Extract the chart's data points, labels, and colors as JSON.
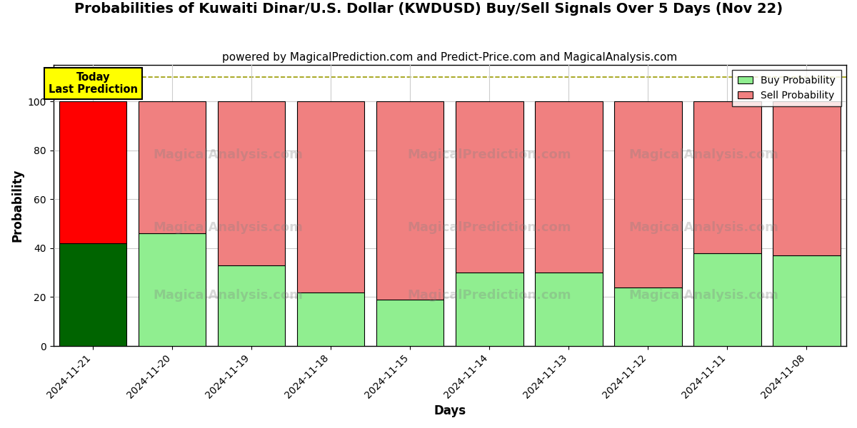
{
  "title": "Probabilities of Kuwaiti Dinar/U.S. Dollar (KWDUSD) Buy/Sell Signals Over 5 Days (Nov 22)",
  "subtitle": "powered by MagicalPrediction.com and Predict-Price.com and MagicalAnalysis.com",
  "xlabel": "Days",
  "ylabel": "Probability",
  "dates": [
    "2024-11-21",
    "2024-11-20",
    "2024-11-19",
    "2024-11-18",
    "2024-11-15",
    "2024-11-14",
    "2024-11-13",
    "2024-11-12",
    "2024-11-11",
    "2024-11-08"
  ],
  "buy_values": [
    42,
    46,
    33,
    22,
    19,
    30,
    30,
    24,
    38,
    37
  ],
  "sell_values": [
    58,
    54,
    67,
    78,
    81,
    70,
    70,
    76,
    62,
    63
  ],
  "today_buy_color": "#006400",
  "today_sell_color": "#FF0000",
  "other_buy_color": "#90EE90",
  "other_sell_color": "#F08080",
  "today_annotation_bg": "#FFFF00",
  "today_annotation_text": "Today\nLast Prediction",
  "ylim": [
    0,
    115
  ],
  "yticks": [
    0,
    20,
    40,
    60,
    80,
    100
  ],
  "dashed_line_y": 110,
  "dashed_line_color": "#999900",
  "grid_color": "#cccccc",
  "background_color": "#ffffff",
  "title_fontsize": 14,
  "subtitle_fontsize": 11,
  "legend_buy_color": "#90EE90",
  "legend_sell_color": "#F08080",
  "bar_width": 0.85
}
